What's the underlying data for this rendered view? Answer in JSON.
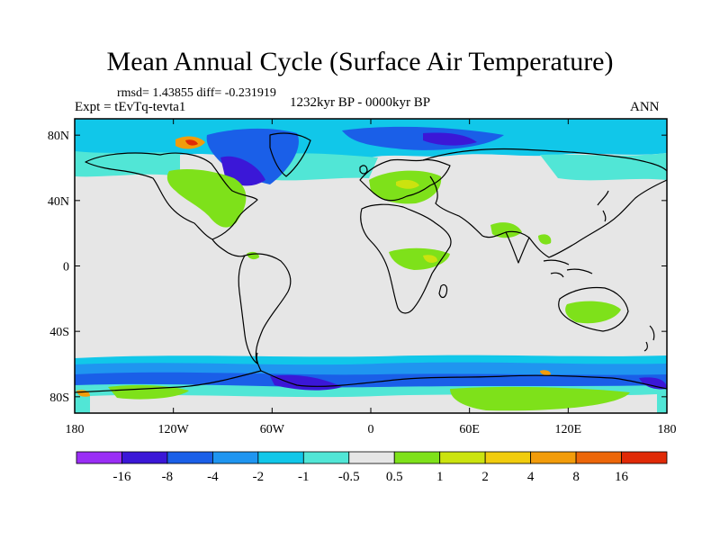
{
  "title": "Mean Annual Cycle (Surface Air Temperature)",
  "stats": {
    "rmsd_label": "rmsd=",
    "rmsd": "1.43855",
    "diff_label": "diff=",
    "diff": "-0.231919"
  },
  "experiment": "Expt = tEvTq-tevta1",
  "period": "1232kyr BP - 0000kyr BP",
  "season": "ANN",
  "map": {
    "lon_range": [
      -180,
      180
    ],
    "lat_range": [
      -90,
      90
    ],
    "y_tick_values": [
      80,
      40,
      0,
      -40,
      -80
    ],
    "y_tick_labels": [
      "80N",
      "40N",
      "0",
      "40S",
      "80S"
    ],
    "x_tick_values": [
      -180,
      -120,
      -60,
      0,
      60,
      120,
      180
    ],
    "x_tick_labels": [
      "180",
      "120W",
      "60W",
      "0",
      "60E",
      "120E",
      "180"
    ],
    "neutral_color": "#e6e6e6",
    "coastline_color": "#000000"
  },
  "colorbar": {
    "colors": [
      "#9a2ef5",
      "#3b17d7",
      "#1a5fe8",
      "#1f95f0",
      "#11c7e9",
      "#51e6d6",
      "#e6e6e6",
      "#7ee11a",
      "#cbe30f",
      "#f1cc0e",
      "#f29c0b",
      "#ec6609",
      "#e02a07"
    ],
    "labels": [
      "-16",
      "-8",
      "-4",
      "-2",
      "-1",
      "-0.5",
      "0.5",
      "1",
      "2",
      "4",
      "8",
      "16"
    ]
  }
}
